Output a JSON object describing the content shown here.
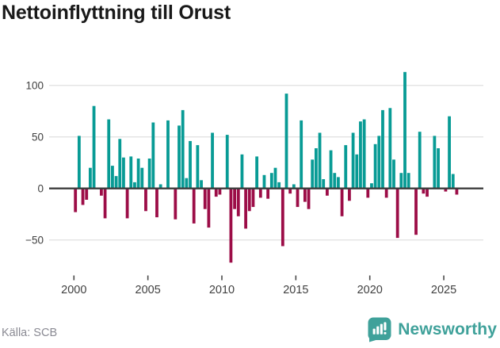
{
  "title": "Nettoinflyttning till Orust",
  "source": "Källa: SCB",
  "branding": {
    "name": "Newsworthy",
    "color": "#3fa19a"
  },
  "colors": {
    "positive": "#089b95",
    "negative": "#9c0d47",
    "grid": "#e3e3e3",
    "zero_line": "#3d3d3d",
    "tick": "#4a4a4a",
    "label": "#404040",
    "title": "#191919",
    "source": "#8a8a93",
    "background": "#ffffff"
  },
  "axes": {
    "y_tick_labels": [
      "100",
      "50",
      "0",
      "−50"
    ],
    "x_tick_labels": [
      "2000",
      "2005",
      "2010",
      "2015",
      "2020",
      "2025"
    ]
  },
  "chart_data": {
    "type": "bar",
    "title": "Nettoinflyttning till Orust",
    "frequency": "quarterly",
    "start_period": "2000-Q1",
    "end_period": "2025-Q4",
    "grid": true,
    "legend": false,
    "ylim": [
      -78,
      118
    ],
    "y_ticks": [
      100,
      50,
      0,
      -50
    ],
    "x_ticks": [
      2000,
      2005,
      2010,
      2015,
      2020,
      2025
    ],
    "values": [
      -23,
      51,
      -16,
      -11,
      20,
      80,
      0,
      -7,
      -29,
      67,
      22,
      12,
      48,
      30,
      -29,
      31,
      6,
      29,
      20,
      -22,
      29,
      64,
      -28,
      4,
      0,
      66,
      0,
      -30,
      61,
      76,
      10,
      46,
      -34,
      42,
      8,
      -20,
      -38,
      54,
      -8,
      -6,
      0,
      52,
      -72,
      -20,
      -27,
      33,
      -39,
      -22,
      -18,
      31,
      -9,
      13,
      -10,
      15,
      20,
      6,
      -56,
      92,
      -5,
      4,
      -18,
      66,
      -13,
      -20,
      28,
      39,
      54,
      9,
      -7,
      37,
      15,
      11,
      -27,
      42,
      -12,
      54,
      33,
      65,
      67,
      -9,
      5,
      43,
      51,
      76,
      -9,
      78,
      28,
      -48,
      15,
      113,
      15,
      0,
      -45,
      55,
      -5,
      -8,
      0,
      51,
      39,
      0,
      -3,
      70,
      14,
      -6
    ]
  }
}
